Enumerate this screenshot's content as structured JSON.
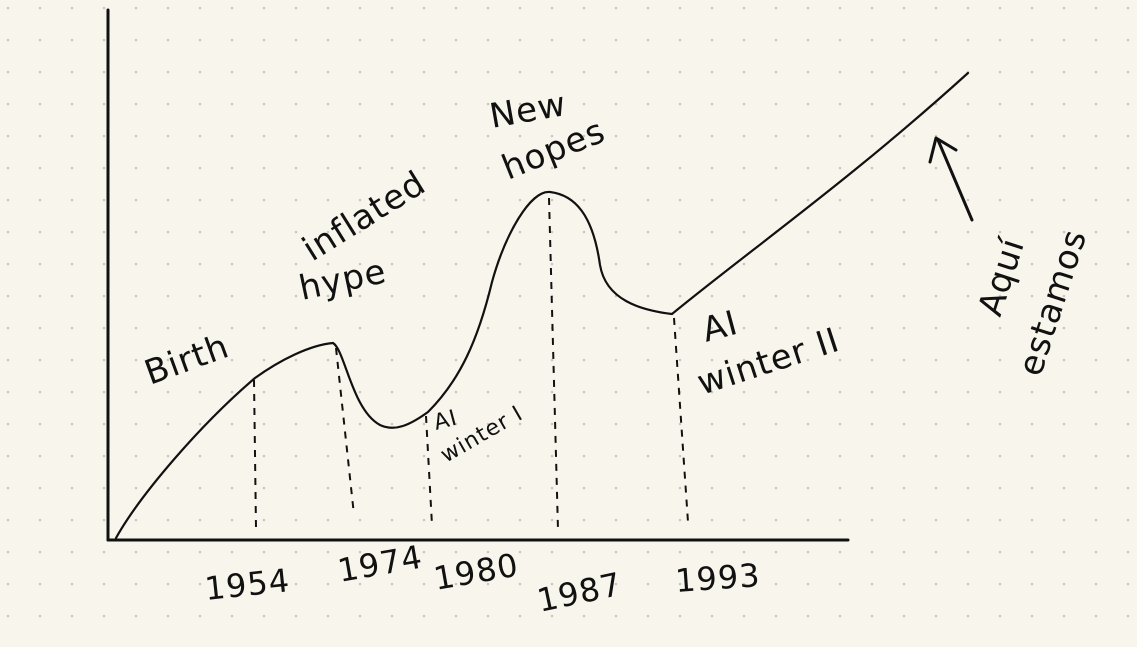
{
  "background_color": "#f8f6ec",
  "ink_color": "#111111",
  "diagram": {
    "phases": [
      {
        "label": "Birth"
      },
      {
        "label_line1": "inflated",
        "label_line2": "hype"
      },
      {
        "label_line1": "New",
        "label_line2": "hopes"
      },
      {
        "label_line1": "AI",
        "label_line2": "winter I"
      },
      {
        "label_line1": "AI",
        "label_line2": "winter II"
      }
    ],
    "years": [
      "1954",
      "1974",
      "1980",
      "1987",
      "1993"
    ],
    "note": {
      "line1": "Aquí",
      "line2": "estamos"
    }
  }
}
